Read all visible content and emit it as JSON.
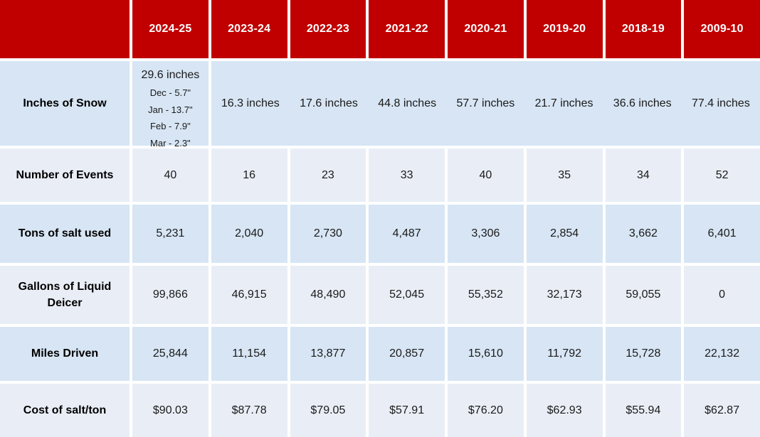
{
  "colors": {
    "header_bg": "#C00000",
    "header_text": "#FFFFFF",
    "band_dark": "#D7E5F4",
    "band_light": "#E9EEF6",
    "grid": "#FFFFFF",
    "label_text": "#000000",
    "value_text": "#1A1A1A"
  },
  "table": {
    "header": {
      "corner": "",
      "columns": [
        "2024-25",
        "2023-24",
        "2022-23",
        "2021-22",
        "2020-21",
        "2019-20",
        "2018-19",
        "2009-10"
      ]
    },
    "rows": {
      "snow": {
        "label": "Inches of Snow",
        "current": {
          "total": "29.6 inches",
          "monthly": [
            "Dec - 5.7\"",
            "Jan - 13.7\"",
            "Feb - 7.9\"",
            "Mar - 2.3\""
          ]
        },
        "values": [
          "16.3 inches",
          "17.6 inches",
          "44.8 inches",
          "57.7 inches",
          "21.7 inches",
          "36.6 inches",
          "77.4 inches"
        ]
      },
      "events": {
        "label": "Number of Events",
        "values": [
          "40",
          "16",
          "23",
          "33",
          "40",
          "35",
          "34",
          "52"
        ]
      },
      "salt": {
        "label": "Tons of salt used",
        "values": [
          "5,231",
          "2,040",
          "2,730",
          "4,487",
          "3,306",
          "2,854",
          "3,662",
          "6,401"
        ]
      },
      "deicer": {
        "label": "Gallons of Liquid Deicer",
        "values": [
          "99,866",
          "46,915",
          "48,490",
          "52,045",
          "55,352",
          "32,173",
          "59,055",
          "0"
        ]
      },
      "miles": {
        "label": "Miles Driven",
        "values": [
          "25,844",
          "11,154",
          "13,877",
          "20,857",
          "15,610",
          "11,792",
          "15,728",
          "22,132"
        ]
      },
      "cost": {
        "label": "Cost of salt/ton",
        "values": [
          "$90.03",
          "$87.78",
          "$79.05",
          "$57.91",
          "$76.20",
          "$62.93",
          "$55.94",
          "$62.87"
        ]
      }
    }
  },
  "chart_data": {
    "type": "table",
    "columns": [
      "2024-25",
      "2023-24",
      "2022-23",
      "2021-22",
      "2020-21",
      "2019-20",
      "2018-19",
      "2009-10"
    ],
    "rows": [
      {
        "label": "Inches of Snow",
        "unit": "inches",
        "values": [
          29.6,
          16.3,
          17.6,
          44.8,
          57.7,
          21.7,
          36.6,
          77.4
        ],
        "monthly_breakdown_2024_25": {
          "Dec": 5.7,
          "Jan": 13.7,
          "Feb": 7.9,
          "Mar": 2.3
        }
      },
      {
        "label": "Number of Events",
        "values": [
          40,
          16,
          23,
          33,
          40,
          35,
          34,
          52
        ]
      },
      {
        "label": "Tons of salt used",
        "values": [
          5231,
          2040,
          2730,
          4487,
          3306,
          2854,
          3662,
          6401
        ]
      },
      {
        "label": "Gallons of Liquid Deicer",
        "values": [
          99866,
          46915,
          48490,
          52045,
          55352,
          32173,
          59055,
          0
        ]
      },
      {
        "label": "Miles Driven",
        "values": [
          25844,
          11154,
          13877,
          20857,
          15610,
          11792,
          15728,
          22132
        ]
      },
      {
        "label": "Cost of salt/ton",
        "unit": "USD",
        "values": [
          90.03,
          87.78,
          79.05,
          57.91,
          76.2,
          62.93,
          55.94,
          62.87
        ]
      }
    ]
  }
}
